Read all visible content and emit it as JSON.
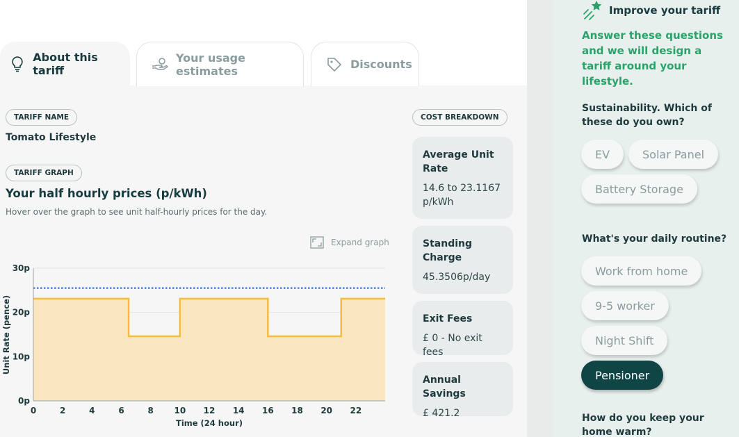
{
  "tabs": [
    {
      "label": "About this tariff",
      "active": true
    },
    {
      "label": "Your usage estimates",
      "active": false
    },
    {
      "label": "Discounts",
      "active": false
    }
  ],
  "tariff": {
    "name_label": "TARIFF NAME",
    "name": "Tomato Lifestyle",
    "graph_label": "TARIFF GRAPH",
    "graph_title": "Your half hourly prices (p/kWh)",
    "graph_hint": "Hover over the graph to see unit half-hourly prices for the day.",
    "expand_label": "Expand graph"
  },
  "cost": {
    "label": "COST BREAKDOWN",
    "cards": [
      {
        "title": "Average Unit Rate",
        "value": "14.6 to 23.1167 p/kWh"
      },
      {
        "title": "Standing Charge",
        "value": "45.3506p/day"
      },
      {
        "title": "Exit Fees",
        "value": "£ 0 - No exit fees"
      },
      {
        "title": "Annual Savings",
        "value": "£ 421.2"
      }
    ]
  },
  "sidebar": {
    "heading": "Improve your tariff",
    "intro": "Answer these questions and we will design a tariff around your lifestyle.",
    "q1": "Sustainability. Which of these do you own?",
    "q1_options": [
      "EV",
      "Solar Panel",
      "Battery Storage"
    ],
    "q2": "What's your daily routine?",
    "q2_options": [
      "Work from home",
      "9-5 worker",
      "Night Shift",
      "Pensioner"
    ],
    "q2_selected": "Pensioner",
    "q3": "How do you keep your home warm?"
  },
  "colors": {
    "accent_green": "#2aa36b",
    "dark_teal": "#0f4545",
    "line": "#f5bd3c",
    "fill": "#f9e6be",
    "average_line": "#4a7fe6"
  },
  "chart_data": {
    "type": "area",
    "xlabel": "Time (24 hour)",
    "ylabel": "Unit Rate (pence)",
    "x_ticks": [
      "0",
      "2",
      "4",
      "6",
      "8",
      "10",
      "12",
      "14",
      "16",
      "18",
      "20",
      "22"
    ],
    "y_ticks": [
      "0p",
      "10p",
      "20p",
      "30p"
    ],
    "xlim": [
      0,
      24
    ],
    "ylim": [
      0,
      30
    ],
    "grid": true,
    "series": [
      {
        "x": [
          0,
          6.5,
          6.5,
          10,
          10,
          16,
          16,
          21,
          21,
          24
        ],
        "y": [
          23.1,
          23.1,
          14.6,
          14.6,
          23.1,
          23.1,
          14.6,
          14.6,
          23.1,
          23.1
        ]
      }
    ],
    "reference_lines": [
      {
        "y": 25.5,
        "style": "dotted"
      }
    ]
  }
}
